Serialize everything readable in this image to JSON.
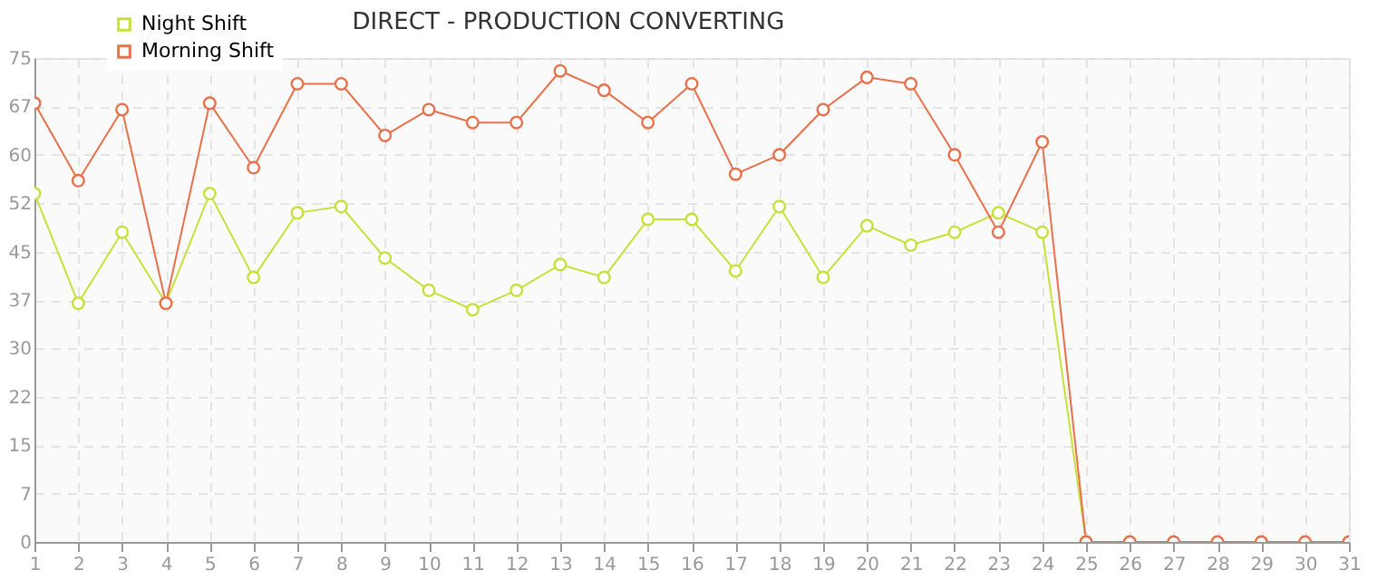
{
  "chart_data": {
    "type": "line",
    "title": "DIRECT - PRODUCTION CONVERTING",
    "x": [
      1,
      2,
      3,
      4,
      5,
      6,
      7,
      8,
      9,
      10,
      11,
      12,
      13,
      14,
      15,
      16,
      17,
      18,
      19,
      20,
      21,
      22,
      23,
      24,
      25,
      26,
      27,
      28,
      29,
      30,
      31
    ],
    "series": [
      {
        "name": "Night Shift",
        "color": "#c8e03c",
        "values": [
          54,
          37,
          48,
          37,
          54,
          41,
          51,
          52,
          44,
          39,
          36,
          39,
          43,
          41,
          50,
          50,
          42,
          52,
          41,
          49,
          46,
          48,
          51,
          48,
          0,
          0,
          null,
          null,
          null,
          null,
          null
        ]
      },
      {
        "name": "Morning Shift",
        "color": "#e8704a",
        "values": [
          68,
          56,
          67,
          37,
          68,
          58,
          71,
          71,
          63,
          67,
          65,
          65,
          73,
          70,
          65,
          71,
          57,
          60,
          67,
          72,
          71,
          60,
          48,
          62,
          0,
          0,
          0,
          0,
          0,
          0,
          0
        ]
      }
    ],
    "xlim": [
      1,
      31
    ],
    "xticks": [
      1,
      2,
      3,
      4,
      5,
      6,
      7,
      8,
      9,
      10,
      11,
      12,
      13,
      14,
      15,
      16,
      17,
      18,
      19,
      20,
      21,
      22,
      23,
      24,
      25,
      26,
      27,
      28,
      29,
      30,
      31
    ],
    "ylim": [
      0,
      75
    ],
    "yticks": [
      0,
      {
        "value": 7.5,
        "label": "7"
      },
      15,
      {
        "value": 22.5,
        "label": "22"
      },
      30,
      {
        "value": 37.5,
        "label": "37"
      },
      45,
      {
        "value": 52.5,
        "label": "52"
      },
      60,
      {
        "value": 67.5,
        "label": "67"
      },
      75
    ],
    "grid": true,
    "legend": "top left",
    "marker": "circle",
    "line_style": "solid"
  }
}
